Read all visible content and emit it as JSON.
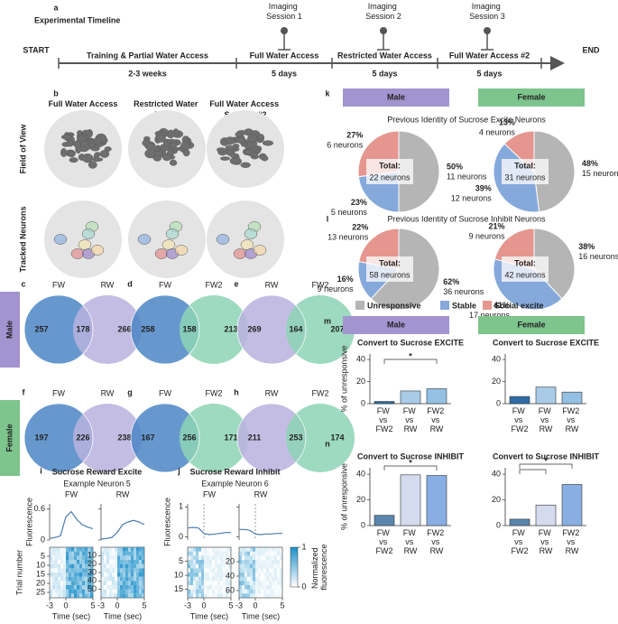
{
  "panel_a": {
    "letter": "a",
    "title": "Experimental Timeline",
    "start": "START",
    "end": "END",
    "sessions": [
      "Imaging Session 1",
      "Imaging Session 2",
      "Imaging Session 3"
    ],
    "phases": [
      {
        "label": "Training & Partial Water Access",
        "duration": "2-3 weeks"
      },
      {
        "label": "Full Water Access",
        "duration": "5 days"
      },
      {
        "label": "Restricted Water Access",
        "duration": "5 days"
      },
      {
        "label": "Full Water Access #2",
        "duration": "5 days"
      }
    ]
  },
  "panel_b": {
    "letter": "b",
    "columns": [
      "Full Water Access",
      "Restricted Water Access",
      "Full Water Access Session #2"
    ],
    "rows": [
      "Field of View",
      "Tracked Neurons"
    ]
  },
  "venns": {
    "sexes": [
      "Male",
      "Female"
    ],
    "sex_colors": [
      "#a294cf",
      "#7dc48d"
    ],
    "set_colors": {
      "FW": "#4b86c6",
      "RW": "#b9b1de",
      "FW2": "#8dd3b5"
    },
    "panels": [
      {
        "letter": "c",
        "sets": [
          "FW",
          "RW"
        ],
        "counts": [
          257,
          178,
          266
        ]
      },
      {
        "letter": "d",
        "sets": [
          "FW",
          "FW2"
        ],
        "counts": [
          258,
          158,
          213
        ]
      },
      {
        "letter": "e",
        "sets": [
          "RW",
          "FW2"
        ],
        "counts": [
          269,
          164,
          207
        ]
      },
      {
        "letter": "f",
        "sets": [
          "FW",
          "RW"
        ],
        "counts": [
          197,
          226,
          238
        ]
      },
      {
        "letter": "g",
        "sets": [
          "FW",
          "FW2"
        ],
        "counts": [
          167,
          256,
          171
        ]
      },
      {
        "letter": "h",
        "sets": [
          "RW",
          "FW2"
        ],
        "counts": [
          211,
          253,
          174
        ]
      }
    ]
  },
  "pie_legend": {
    "categories": [
      "Unresponsive",
      "Stable",
      "Social excite"
    ],
    "colors": [
      "#b5b5b5",
      "#86a9db",
      "#e5968e"
    ]
  },
  "chart_data": [
    {
      "type": "line",
      "letter": "i",
      "title": "Sucrose Reward Excite",
      "subtitle": "Example Neuron 5",
      "ylabel": "Fluorescence",
      "xlabel": "Time (sec)",
      "heatmap_ylabel": "Trial number",
      "ylim": [
        0,
        0.7
      ],
      "yticks": [
        0,
        0.6
      ],
      "xlim": [
        -3,
        5
      ],
      "xticks": [
        -3,
        0,
        5
      ],
      "series": [
        {
          "name": "FW",
          "color": "#4a7bb0",
          "x": [
            -3,
            -2,
            -1,
            0,
            1,
            2,
            3,
            4,
            5
          ],
          "values": [
            0.03,
            0.05,
            0.08,
            0.45,
            0.55,
            0.4,
            0.3,
            0.25,
            0.22
          ],
          "trial_lim": [
            0,
            28
          ],
          "trial_ticks": [
            5,
            10,
            15,
            20,
            25
          ]
        },
        {
          "name": "RW",
          "color": "#4a7bb0",
          "x": [
            -3,
            -2,
            -1,
            0,
            1,
            2,
            3,
            4,
            5
          ],
          "values": [
            0.02,
            0.03,
            0.05,
            0.15,
            0.3,
            0.35,
            0.38,
            0.35,
            0.3
          ],
          "trial_lim": [
            0,
            60
          ],
          "trial_ticks": [
            10,
            20,
            30,
            40,
            50
          ]
        }
      ]
    },
    {
      "type": "line",
      "letter": "j",
      "title": "Sucrose Reward Inhibit",
      "subtitle": "Example Neuron 6",
      "ylabel": "Fluorescence",
      "xlabel": "Time (sec)",
      "ylim": [
        -0.1,
        1.1
      ],
      "yticks": [
        0,
        1
      ],
      "xlim": [
        -3,
        5
      ],
      "xticks": [
        -3,
        0,
        5
      ],
      "colorbar": {
        "label": "Normalized fluorescence",
        "ticks": [
          0,
          1
        ]
      },
      "series": [
        {
          "name": "FW",
          "color": "#4a7bb0",
          "x": [
            -3,
            -2,
            -1,
            0,
            1,
            2,
            3,
            4,
            5
          ],
          "values": [
            0.3,
            0.32,
            0.3,
            0.12,
            0.08,
            0.1,
            0.12,
            0.15,
            0.15
          ],
          "trial_lim": [
            0,
            18
          ],
          "trial_ticks": [
            5,
            10,
            15
          ]
        },
        {
          "name": "RW",
          "color": "#4a7bb0",
          "x": [
            -3,
            -2,
            -1,
            0,
            1,
            2,
            3,
            4,
            5
          ],
          "values": [
            0.25,
            0.25,
            0.22,
            0.1,
            0.08,
            0.1,
            0.1,
            0.12,
            0.12
          ],
          "trial_lim": [
            0,
            70
          ],
          "trial_ticks": [
            20,
            40,
            60
          ]
        }
      ]
    },
    {
      "type": "pie",
      "letter": "k",
      "header": "Male",
      "header_color": "#a294cf",
      "title": "Previous Identity of Sucrose Excite Neurons",
      "values": [
        50,
        23,
        27
      ],
      "value_labels": [
        "50%",
        "23%",
        "27%"
      ],
      "neuron_labels": [
        "11 neurons",
        "5 neurons",
        "6 neurons"
      ],
      "total_label": "Total:",
      "total": "22 neurons"
    },
    {
      "type": "pie",
      "header": "Female",
      "header_color": "#7dc48d",
      "values": [
        48,
        39,
        13
      ],
      "value_labels": [
        "48%",
        "39%",
        "13%"
      ],
      "neuron_labels": [
        "15 neurons",
        "12 neurons",
        "4 neurons"
      ],
      "total_label": "Total:",
      "total": "31 neurons"
    },
    {
      "type": "pie",
      "letter": "l",
      "title": "Previous Identity of Sucrose Inhibit Neurons",
      "values": [
        62,
        16,
        22
      ],
      "value_labels": [
        "62%",
        "16%",
        "22%"
      ],
      "neuron_labels": [
        "36 neurons",
        "9 neurons",
        "13 neurons"
      ],
      "total_label": "Total:",
      "total": "58 neurons"
    },
    {
      "type": "pie",
      "values": [
        38,
        41,
        21
      ],
      "value_labels": [
        "38%",
        "41%",
        "21%"
      ],
      "neuron_labels": [
        "16 neurons",
        "17 neurons",
        "9 neurons"
      ],
      "total_label": "Total:",
      "total": "42 neurons"
    },
    {
      "type": "bar",
      "letter": "m",
      "header": "Male",
      "header_color": "#a294cf",
      "title": "Convert to Sucrose EXCITE",
      "ylabel": "% of unresponsive",
      "categories": [
        "FW vs FW2",
        "FW vs RW",
        "FW2 vs RW"
      ],
      "colors": [
        "#2e6da4",
        "#a9cbe8",
        "#93c0e3"
      ],
      "values": [
        2,
        11.5,
        13.5
      ],
      "ylim": [
        0,
        45
      ],
      "yticks": [
        0,
        20,
        40
      ],
      "significance": "*"
    },
    {
      "type": "bar",
      "header": "Female",
      "header_color": "#7dc48d",
      "title": "Convert to Sucrose EXCITE",
      "categories": [
        "FW vs FW2",
        "FW vs RW",
        "FW2 vs RW"
      ],
      "colors": [
        "#2e6da4",
        "#a9cbe8",
        "#93c0e3"
      ],
      "values": [
        6.5,
        15,
        10.5
      ],
      "ylim": [
        0,
        45
      ],
      "yticks": [
        0,
        20,
        40
      ]
    },
    {
      "type": "bar",
      "letter": "n",
      "title": "Convert to Sucrose INHIBIT",
      "ylabel": "% of unresponsive",
      "categories": [
        "FW vs FW2",
        "FW vs RW",
        "FW2 vs RW"
      ],
      "colors": [
        "#5a86ae",
        "#d4dbef",
        "#88aee3"
      ],
      "values": [
        8,
        39.5,
        39
      ],
      "ylim": [
        0,
        45
      ],
      "yticks": [
        0,
        20,
        40
      ],
      "significance": "*"
    },
    {
      "type": "bar",
      "title": "Convert to Sucrose INHIBIT",
      "categories": [
        "FW vs FW2",
        "FW vs RW",
        "FW2 vs RW"
      ],
      "colors": [
        "#5a86ae",
        "#d4dbef",
        "#88aee3"
      ],
      "values": [
        5,
        16,
        32
      ],
      "ylim": [
        0,
        45
      ],
      "yticks": [
        0,
        20,
        40
      ],
      "significance": "*"
    }
  ]
}
